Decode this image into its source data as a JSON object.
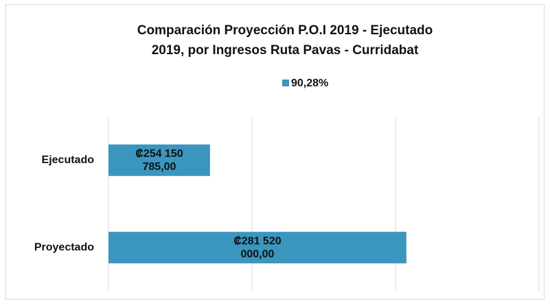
{
  "chart_data": {
    "type": "hbar",
    "title": [
      "Comparación Proyección P.O.I 2019 - Ejecutado",
      "2019, por Ingresos Ruta Pavas - Curridabat"
    ],
    "categories": [
      "Ejecutado",
      "Proyectado"
    ],
    "series": [
      {
        "name": "90,28%",
        "color": "#3a96be",
        "values": [
          254150785,
          281520000
        ],
        "value_labels": [
          "₡254 150 785,00",
          "₡281 520 000,00"
        ]
      }
    ],
    "xlim": [
      240000000,
      300000000
    ],
    "xticks": [
      240000000,
      260000000,
      280000000,
      300000000
    ],
    "grid": true,
    "legend": "top"
  }
}
